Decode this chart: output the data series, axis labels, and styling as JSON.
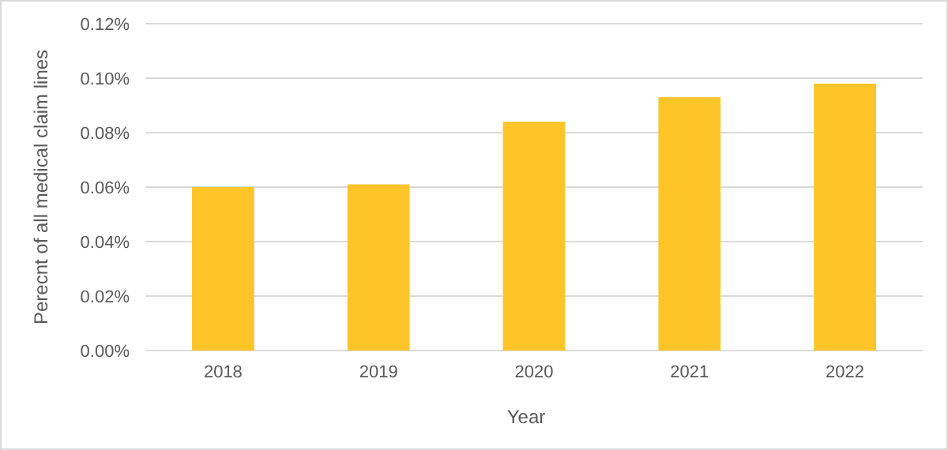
{
  "chart_data": {
    "type": "bar",
    "xlabel": "Year",
    "ylabel": "Perecnt of all medical claim lines",
    "categories": [
      "2018",
      "2019",
      "2020",
      "2021",
      "2022"
    ],
    "values": [
      0.06,
      0.061,
      0.084,
      0.093,
      0.098
    ],
    "color": "#ffc428",
    "ylim": [
      0,
      0.12
    ],
    "yticks": [
      {
        "value": 0,
        "label": "0.00%"
      },
      {
        "value": 0.02,
        "label": "0.02%"
      },
      {
        "value": 0.04,
        "label": "0.04%"
      },
      {
        "value": 0.06,
        "label": "0.06%"
      },
      {
        "value": 0.08,
        "label": "0.08%"
      },
      {
        "value": 0.1,
        "label": "0.10%"
      },
      {
        "value": 0.12,
        "label": "0.12%"
      }
    ],
    "grid": "y"
  }
}
